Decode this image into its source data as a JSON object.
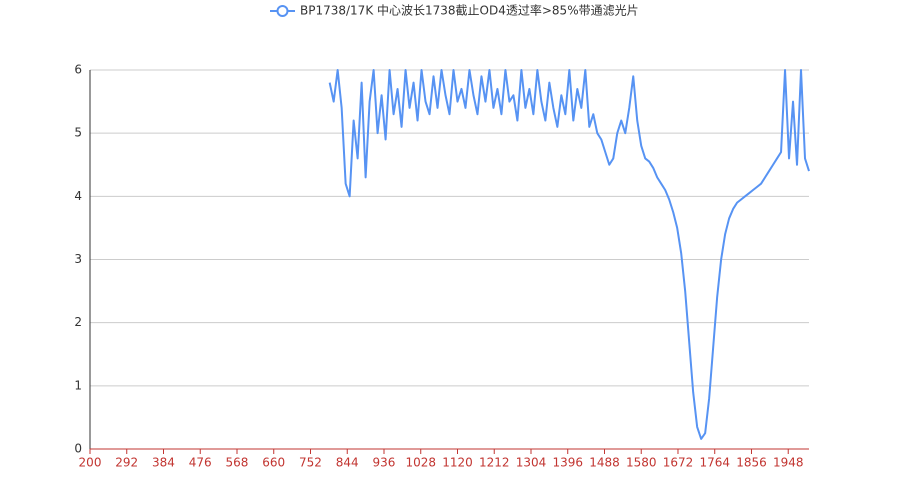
{
  "chart_data": {
    "type": "line",
    "series": [
      {
        "name": "BP1738/17K 中心波长1738截止OD4透过率>85%带通滤光片",
        "color": "#5793f3",
        "x": [
          800,
          810,
          820,
          830,
          840,
          850,
          860,
          870,
          880,
          890,
          900,
          910,
          920,
          930,
          940,
          950,
          960,
          970,
          980,
          990,
          1000,
          1010,
          1020,
          1030,
          1040,
          1050,
          1060,
          1070,
          1080,
          1090,
          1100,
          1110,
          1120,
          1130,
          1140,
          1150,
          1160,
          1170,
          1180,
          1190,
          1200,
          1210,
          1220,
          1230,
          1240,
          1250,
          1260,
          1270,
          1280,
          1290,
          1300,
          1310,
          1320,
          1330,
          1340,
          1350,
          1360,
          1370,
          1380,
          1390,
          1400,
          1410,
          1420,
          1430,
          1440,
          1450,
          1460,
          1470,
          1480,
          1490,
          1500,
          1510,
          1520,
          1530,
          1540,
          1550,
          1560,
          1570,
          1580,
          1590,
          1600,
          1610,
          1620,
          1630,
          1640,
          1650,
          1660,
          1670,
          1680,
          1690,
          1700,
          1710,
          1720,
          1730,
          1740,
          1750,
          1760,
          1770,
          1780,
          1790,
          1800,
          1810,
          1820,
          1830,
          1840,
          1850,
          1860,
          1870,
          1880,
          1890,
          1900,
          1910,
          1920,
          1930,
          1940,
          1950,
          1960,
          1970,
          1980,
          1990,
          2000
        ],
        "values": [
          5.8,
          5.5,
          6,
          5.4,
          4.2,
          4.0,
          5.2,
          4.6,
          5.8,
          4.3,
          5.5,
          6,
          5.0,
          5.6,
          4.9,
          6,
          5.3,
          5.7,
          5.1,
          6,
          5.4,
          5.8,
          5.2,
          6,
          5.5,
          5.3,
          5.9,
          5.4,
          6,
          5.6,
          5.3,
          6,
          5.5,
          5.7,
          5.4,
          6,
          5.6,
          5.3,
          5.9,
          5.5,
          6,
          5.4,
          5.7,
          5.3,
          6,
          5.5,
          5.6,
          5.2,
          6,
          5.4,
          5.7,
          5.3,
          6,
          5.5,
          5.2,
          5.8,
          5.4,
          5.1,
          5.6,
          5.3,
          6,
          5.2,
          5.7,
          5.4,
          6,
          5.1,
          5.3,
          5.0,
          4.9,
          4.7,
          4.5,
          4.6,
          5.0,
          5.2,
          5.0,
          5.4,
          5.9,
          5.2,
          4.8,
          4.6,
          4.55,
          4.45,
          4.3,
          4.2,
          4.1,
          3.95,
          3.75,
          3.5,
          3.1,
          2.5,
          1.7,
          0.9,
          0.35,
          0.16,
          0.25,
          0.8,
          1.6,
          2.4,
          3.0,
          3.4,
          3.65,
          3.8,
          3.9,
          3.95,
          4.0,
          4.05,
          4.1,
          4.15,
          4.2,
          4.3,
          4.4,
          4.5,
          4.6,
          4.7,
          6,
          4.6,
          5.5,
          4.5,
          6,
          4.6,
          4.4
        ]
      }
    ],
    "xlim": [
      200,
      2000
    ],
    "xticks": [
      200,
      292,
      384,
      476,
      568,
      660,
      752,
      844,
      936,
      1028,
      1120,
      1212,
      1304,
      1396,
      1488,
      1580,
      1672,
      1764,
      1856,
      1948
    ],
    "ylim": [
      0,
      6
    ],
    "yticks": [
      0,
      1,
      2,
      3,
      4,
      5,
      6
    ],
    "grid": true
  }
}
